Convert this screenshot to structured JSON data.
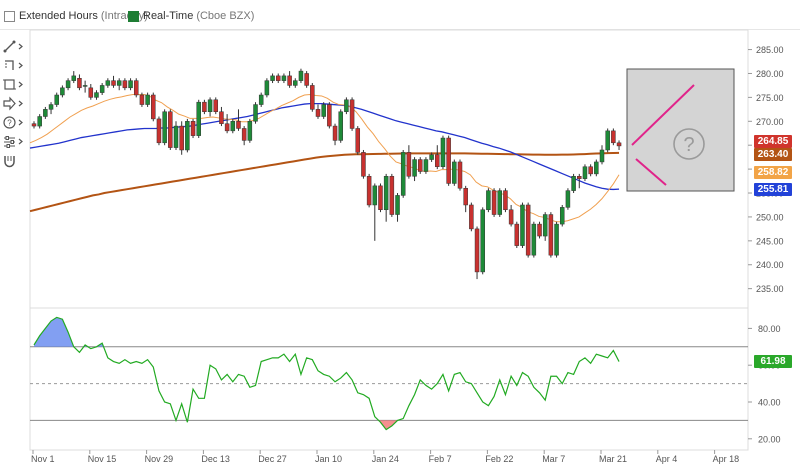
{
  "options": {
    "extended": {
      "label": "Extended Hours",
      "sub": "(Intraday)",
      "checked": false
    },
    "realtime": {
      "label": "Real-Time",
      "sub": "(Cboe BZX)",
      "checked": true
    }
  },
  "toolbar": {
    "icons": [
      "trendline-icon",
      "measure-icon",
      "zoom-icon",
      "arrow-icon",
      "help-icon",
      "settings-icon",
      "magnet-icon"
    ]
  },
  "colors": {
    "up": "#1e8a38",
    "down": "#c8312f",
    "sma_fast": "#f0a050",
    "sma_mid": "#2233cc",
    "sma_slow": "#b35414",
    "rsi": "#22aa22",
    "rsi_overbought_fill": "#6c8ef0",
    "rsi_oversold_fill": "#f37b7b",
    "tag_close": "#d0342c",
    "tag_slow": "#b35414",
    "tag_fast": "#f2a447",
    "tag_mid": "#2242d8",
    "tag_rsi": "#2aa82a",
    "annotation": "#e0248a"
  },
  "chart_data": {
    "type": "candlestick",
    "x_ticks": [
      "Nov 1",
      "Nov 15",
      "Nov 29",
      "Dec 13",
      "Dec 27",
      "Jan 10",
      "Jan 24",
      "Feb 7",
      "Feb 22",
      "Mar 7",
      "Mar 21",
      "Apr 4",
      "Apr 18"
    ],
    "price_ticks": [
      "285.00",
      "280.00",
      "275.00",
      "270.00",
      "265.00",
      "260.00",
      "255.00",
      "250.00",
      "245.00",
      "240.00",
      "235.00"
    ],
    "price_ylim": [
      232,
      287
    ],
    "rsi_ticks": [
      "80.00",
      "60.00",
      "40.00",
      "20.00"
    ],
    "rsi_ylim": [
      15,
      90
    ],
    "rsi_levels": {
      "overbought": 70,
      "mid": 50,
      "oversold": 30
    },
    "price_tags": {
      "close": "264.85",
      "sma_slow": "263.40",
      "sma_fast": "258.82",
      "sma_mid": "255.81",
      "rsi": "61.98"
    },
    "candles": [
      [
        269.5,
        270.0,
        268.5,
        269.0
      ],
      [
        269.0,
        271.5,
        268.5,
        271.0
      ],
      [
        271.0,
        273.0,
        270.5,
        272.5
      ],
      [
        272.5,
        274.0,
        271.5,
        273.5
      ],
      [
        273.5,
        276.0,
        273.0,
        275.5
      ],
      [
        275.5,
        277.5,
        275.0,
        277.0
      ],
      [
        277.0,
        279.0,
        276.5,
        278.5
      ],
      [
        278.5,
        280.5,
        278.0,
        279.5
      ],
      [
        279.0,
        279.8,
        276.5,
        277.0
      ],
      [
        277.5,
        278.5,
        276.0,
        277.5
      ],
      [
        277.0,
        277.8,
        274.5,
        275.0
      ],
      [
        275.0,
        276.5,
        274.5,
        276.0
      ],
      [
        276.0,
        278.0,
        275.5,
        277.5
      ],
      [
        277.5,
        279.0,
        277.0,
        278.5
      ],
      [
        278.5,
        279.5,
        277.0,
        277.5
      ],
      [
        277.5,
        279.0,
        276.5,
        278.5
      ],
      [
        278.5,
        279.0,
        276.5,
        277.0
      ],
      [
        277.0,
        279.0,
        276.5,
        278.5
      ],
      [
        278.5,
        279.0,
        275.0,
        275.5
      ],
      [
        275.5,
        276.0,
        273.0,
        273.5
      ],
      [
        273.5,
        276.0,
        273.0,
        275.5
      ],
      [
        275.5,
        276.0,
        270.0,
        270.5
      ],
      [
        270.5,
        271.0,
        265.0,
        265.5
      ],
      [
        265.5,
        272.5,
        265.0,
        272.0
      ],
      [
        272.0,
        272.5,
        264.0,
        264.5
      ],
      [
        264.5,
        270.0,
        264.0,
        269.0
      ],
      [
        269.0,
        270.0,
        263.0,
        264.0
      ],
      [
        264.0,
        270.5,
        263.5,
        270.0
      ],
      [
        270.0,
        270.5,
        266.5,
        267.0
      ],
      [
        267.0,
        274.5,
        266.5,
        274.0
      ],
      [
        274.0,
        274.5,
        271.5,
        272.0
      ],
      [
        272.0,
        275.0,
        271.0,
        274.5
      ],
      [
        274.5,
        275.0,
        271.5,
        272.0
      ],
      [
        272.0,
        273.0,
        269.0,
        269.5
      ],
      [
        269.5,
        271.5,
        267.5,
        268.0
      ],
      [
        268.0,
        270.5,
        267.5,
        270.0
      ],
      [
        270.0,
        272.5,
        268.0,
        268.5
      ],
      [
        268.5,
        269.0,
        265.0,
        266.0
      ],
      [
        266.0,
        270.5,
        265.5,
        270.0
      ],
      [
        270.0,
        274.0,
        269.5,
        273.5
      ],
      [
        273.5,
        276.0,
        273.0,
        275.5
      ],
      [
        275.5,
        279.0,
        275.0,
        278.5
      ],
      [
        278.5,
        280.0,
        278.0,
        279.5
      ],
      [
        279.5,
        280.0,
        278.0,
        278.5
      ],
      [
        278.5,
        280.0,
        278.0,
        279.5
      ],
      [
        279.5,
        280.5,
        277.0,
        277.5
      ],
      [
        277.5,
        279.0,
        277.0,
        278.5
      ],
      [
        278.5,
        281.0,
        278.0,
        280.5
      ],
      [
        280.0,
        280.5,
        277.0,
        277.5
      ],
      [
        277.5,
        278.0,
        272.0,
        272.5
      ],
      [
        272.5,
        273.5,
        270.5,
        271.0
      ],
      [
        271.0,
        274.0,
        270.5,
        273.5
      ],
      [
        273.5,
        274.0,
        268.5,
        269.0
      ],
      [
        269.0,
        269.5,
        265.0,
        266.0
      ],
      [
        266.0,
        272.5,
        265.5,
        272.0
      ],
      [
        272.0,
        275.0,
        271.5,
        274.5
      ],
      [
        274.5,
        275.0,
        268.0,
        268.5
      ],
      [
        268.5,
        269.0,
        263.0,
        263.5
      ],
      [
        263.5,
        264.0,
        258.0,
        258.5
      ],
      [
        258.5,
        259.0,
        252.0,
        252.5
      ],
      [
        252.5,
        257.0,
        245.0,
        256.5
      ],
      [
        256.5,
        257.0,
        251.0,
        251.5
      ],
      [
        251.5,
        259.0,
        249.0,
        258.5
      ],
      [
        258.5,
        259.0,
        250.0,
        250.5
      ],
      [
        250.5,
        255.0,
        249.0,
        254.5
      ],
      [
        254.5,
        264.0,
        254.0,
        263.5
      ],
      [
        263.5,
        265.0,
        258.0,
        258.5
      ],
      [
        258.5,
        262.5,
        257.5,
        262.0
      ],
      [
        262.0,
        262.5,
        259.0,
        259.5
      ],
      [
        259.5,
        262.5,
        259.0,
        262.0
      ],
      [
        262.0,
        263.5,
        261.5,
        263.0
      ],
      [
        263.0,
        265.0,
        260.0,
        260.5
      ],
      [
        260.5,
        267.0,
        260.0,
        266.5
      ],
      [
        266.5,
        267.0,
        256.5,
        257.0
      ],
      [
        257.0,
        262.0,
        256.5,
        261.5
      ],
      [
        261.5,
        262.0,
        255.5,
        256.0
      ],
      [
        256.0,
        256.5,
        251.0,
        252.5
      ],
      [
        252.5,
        253.0,
        247.0,
        247.5
      ],
      [
        247.5,
        248.0,
        237.0,
        238.5
      ],
      [
        238.5,
        252.0,
        238.0,
        251.5
      ],
      [
        251.5,
        256.0,
        251.0,
        255.5
      ],
      [
        255.5,
        256.0,
        250.0,
        250.5
      ],
      [
        250.5,
        256.0,
        250.0,
        255.5
      ],
      [
        255.5,
        256.0,
        251.0,
        251.5
      ],
      [
        251.5,
        252.5,
        248.0,
        248.5
      ],
      [
        248.5,
        249.0,
        243.5,
        244.0
      ],
      [
        244.0,
        253.0,
        243.5,
        252.5
      ],
      [
        252.5,
        253.0,
        241.5,
        242.0
      ],
      [
        242.0,
        249.0,
        241.5,
        248.5
      ],
      [
        248.5,
        249.0,
        245.5,
        246.0
      ],
      [
        246.0,
        251.0,
        245.0,
        250.5
      ],
      [
        250.5,
        251.0,
        241.5,
        242.0
      ],
      [
        242.0,
        249.0,
        241.5,
        248.5
      ],
      [
        248.5,
        252.5,
        248.0,
        252.0
      ],
      [
        252.0,
        256.0,
        251.5,
        255.5
      ],
      [
        255.5,
        259.0,
        255.0,
        258.5
      ],
      [
        258.5,
        259.0,
        256.0,
        258.0
      ],
      [
        258.0,
        261.0,
        257.5,
        260.5
      ],
      [
        260.5,
        261.0,
        258.5,
        259.0
      ],
      [
        259.0,
        262.0,
        258.5,
        261.5
      ],
      [
        261.5,
        265.0,
        261.0,
        264.0
      ],
      [
        264.0,
        268.5,
        263.5,
        268.0
      ],
      [
        268.0,
        268.5,
        265.0,
        265.5
      ],
      [
        265.5,
        266.0,
        264.0,
        264.85
      ]
    ],
    "series": [
      {
        "name": "",
        "role": "sma_fast",
        "values": [
          265.5,
          266.0,
          266.6,
          267.3,
          268.2,
          269.1,
          270.0,
          270.9,
          271.6,
          272.3,
          272.8,
          273.2,
          273.7,
          274.2,
          274.6,
          274.9,
          275.1,
          275.4,
          275.6,
          275.6,
          275.6,
          275.2,
          274.4,
          273.9,
          273.0,
          272.3,
          271.5,
          271.1,
          270.6,
          270.6,
          270.6,
          270.8,
          270.9,
          270.7,
          270.5,
          270.4,
          270.3,
          269.9,
          269.9,
          270.2,
          270.6,
          271.3,
          272.0,
          272.6,
          273.3,
          273.8,
          274.3,
          275.0,
          275.5,
          275.6,
          275.4,
          275.3,
          274.8,
          274.0,
          273.5,
          273.4,
          273.0,
          272.0,
          270.5,
          268.8,
          267.4,
          265.7,
          264.3,
          262.7,
          261.5,
          261.1,
          260.6,
          260.3,
          259.8,
          259.5,
          259.6,
          259.5,
          259.9,
          259.9,
          260.0,
          259.8,
          259.5,
          258.8,
          257.3,
          256.5,
          256.3,
          255.6,
          255.1,
          254.6,
          253.8,
          252.6,
          252.0,
          251.1,
          250.7,
          250.1,
          249.9,
          249.4,
          249.0,
          249.0,
          249.2,
          249.6,
          250.0,
          250.8,
          251.6,
          252.6,
          253.8,
          255.3,
          256.9,
          258.82
        ]
      },
      {
        "name": "",
        "role": "sma_mid",
        "values": [
          264.4,
          264.6,
          264.8,
          265.0,
          265.2,
          265.4,
          265.7,
          266.0,
          266.3,
          266.6,
          266.8,
          267.0,
          267.2,
          267.4,
          267.6,
          267.8,
          268.0,
          268.2,
          268.3,
          268.4,
          268.5,
          268.5,
          268.5,
          268.6,
          268.6,
          268.7,
          268.8,
          268.9,
          269.0,
          269.2,
          269.4,
          269.6,
          269.8,
          270.0,
          270.2,
          270.4,
          270.6,
          270.8,
          271.0,
          271.3,
          271.6,
          271.9,
          272.2,
          272.5,
          272.8,
          273.0,
          273.2,
          273.4,
          273.6,
          273.7,
          273.7,
          273.7,
          273.6,
          273.5,
          273.4,
          273.3,
          273.1,
          272.8,
          272.5,
          272.1,
          271.7,
          271.3,
          270.9,
          270.5,
          270.1,
          269.8,
          269.5,
          269.2,
          268.9,
          268.6,
          268.3,
          268.0,
          267.8,
          267.5,
          267.2,
          266.9,
          266.6,
          266.2,
          265.8,
          265.4,
          265.1,
          264.7,
          264.4,
          264.0,
          263.6,
          263.1,
          262.6,
          262.1,
          261.6,
          261.1,
          260.6,
          260.1,
          259.6,
          259.1,
          258.6,
          258.1,
          257.6,
          257.1,
          256.7,
          256.3,
          256.0,
          255.8,
          255.75,
          255.81
        ]
      },
      {
        "name": "",
        "role": "sma_slow",
        "values": [
          251.2,
          251.5,
          251.8,
          252.1,
          252.4,
          252.7,
          253.0,
          253.3,
          253.6,
          253.9,
          254.2,
          254.5,
          254.7,
          255.0,
          255.2,
          255.4,
          255.6,
          255.8,
          256.0,
          256.2,
          256.4,
          256.6,
          256.8,
          257.0,
          257.2,
          257.4,
          257.6,
          257.8,
          258.0,
          258.2,
          258.4,
          258.6,
          258.8,
          259.0,
          259.2,
          259.4,
          259.6,
          259.8,
          260.0,
          260.2,
          260.4,
          260.6,
          260.8,
          261.0,
          261.2,
          261.4,
          261.6,
          261.8,
          262.0,
          262.2,
          262.4,
          262.55,
          262.7,
          262.8,
          262.9,
          263.0,
          263.05,
          263.1,
          263.12,
          263.14,
          263.16,
          263.18,
          263.2,
          263.22,
          263.24,
          263.26,
          263.28,
          263.3,
          263.3,
          263.3,
          263.3,
          263.3,
          263.3,
          263.3,
          263.3,
          263.3,
          263.28,
          263.26,
          263.24,
          263.22,
          263.2,
          263.18,
          263.16,
          263.14,
          263.12,
          263.1,
          263.08,
          263.06,
          263.04,
          263.02,
          263.0,
          263.0,
          263.0,
          263.02,
          263.04,
          263.06,
          263.1,
          263.14,
          263.2,
          263.26,
          263.3,
          263.34,
          263.38,
          263.4
        ]
      },
      {
        "name": "",
        "role": "rsi",
        "values": [
          71,
          76,
          80,
          84,
          86,
          85,
          78,
          70,
          67,
          71,
          69,
          70,
          72,
          64,
          62,
          61,
          63,
          61,
          62,
          61,
          63,
          59,
          46,
          40,
          39,
          30,
          39,
          29,
          47,
          42,
          42,
          60,
          58,
          52,
          55,
          51,
          55,
          54,
          48,
          49,
          62,
          63,
          64,
          64,
          66,
          62,
          66,
          55,
          64,
          63,
          57,
          55,
          54,
          51,
          53,
          56,
          52,
          45,
          44,
          42,
          32,
          29,
          25,
          27,
          30,
          31,
          38,
          44,
          52,
          49,
          47,
          50,
          55,
          46,
          55,
          56,
          51,
          50,
          45,
          40,
          38,
          43,
          52,
          44,
          54,
          49,
          56,
          54,
          48,
          45,
          41,
          54,
          54,
          50,
          56,
          55,
          62,
          64,
          61,
          66,
          65,
          64,
          68,
          61.98
        ]
      }
    ],
    "annotation": {
      "type": "forecast-placeholder",
      "symbol": "?"
    }
  }
}
